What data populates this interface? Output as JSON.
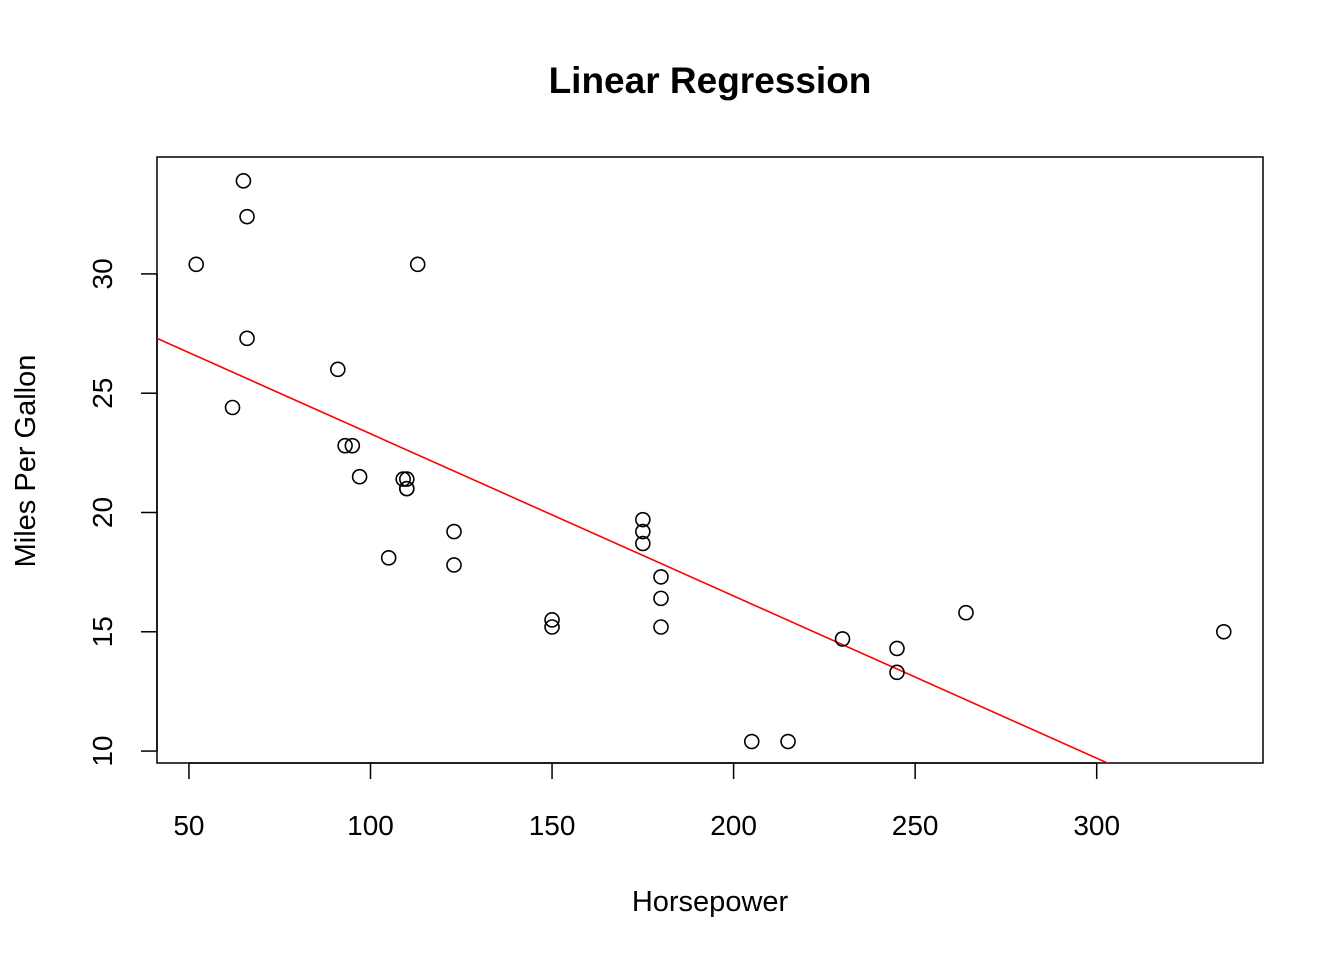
{
  "chart_data": {
    "type": "scatter",
    "title": "Linear Regression",
    "xlabel": "Horsepower",
    "ylabel": "Miles Per Gallon",
    "xlim": [
      41.2,
      345.8
    ],
    "ylim": [
      9.5,
      34.9
    ],
    "x_ticks": [
      50,
      100,
      150,
      200,
      250,
      300
    ],
    "y_ticks": [
      10,
      15,
      20,
      25,
      30
    ],
    "grid": false,
    "point_color": "#000000",
    "regression_color": "#ff0000",
    "regression_line": {
      "intercept": 30.1,
      "slope": -0.068
    },
    "points": [
      {
        "x": 110,
        "y": 21.0
      },
      {
        "x": 110,
        "y": 21.0
      },
      {
        "x": 93,
        "y": 22.8
      },
      {
        "x": 110,
        "y": 21.4
      },
      {
        "x": 175,
        "y": 18.7
      },
      {
        "x": 105,
        "y": 18.1
      },
      {
        "x": 245,
        "y": 14.3
      },
      {
        "x": 62,
        "y": 24.4
      },
      {
        "x": 95,
        "y": 22.8
      },
      {
        "x": 123,
        "y": 19.2
      },
      {
        "x": 123,
        "y": 17.8
      },
      {
        "x": 180,
        "y": 16.4
      },
      {
        "x": 180,
        "y": 17.3
      },
      {
        "x": 180,
        "y": 15.2
      },
      {
        "x": 205,
        "y": 10.4
      },
      {
        "x": 215,
        "y": 10.4
      },
      {
        "x": 230,
        "y": 14.7
      },
      {
        "x": 66,
        "y": 32.4
      },
      {
        "x": 52,
        "y": 30.4
      },
      {
        "x": 65,
        "y": 33.9
      },
      {
        "x": 97,
        "y": 21.5
      },
      {
        "x": 150,
        "y": 15.5
      },
      {
        "x": 150,
        "y": 15.2
      },
      {
        "x": 245,
        "y": 13.3
      },
      {
        "x": 175,
        "y": 19.2
      },
      {
        "x": 66,
        "y": 27.3
      },
      {
        "x": 91,
        "y": 26.0
      },
      {
        "x": 113,
        "y": 30.4
      },
      {
        "x": 264,
        "y": 15.8
      },
      {
        "x": 175,
        "y": 19.7
      },
      {
        "x": 335,
        "y": 15.0
      },
      {
        "x": 109,
        "y": 21.4
      }
    ]
  }
}
